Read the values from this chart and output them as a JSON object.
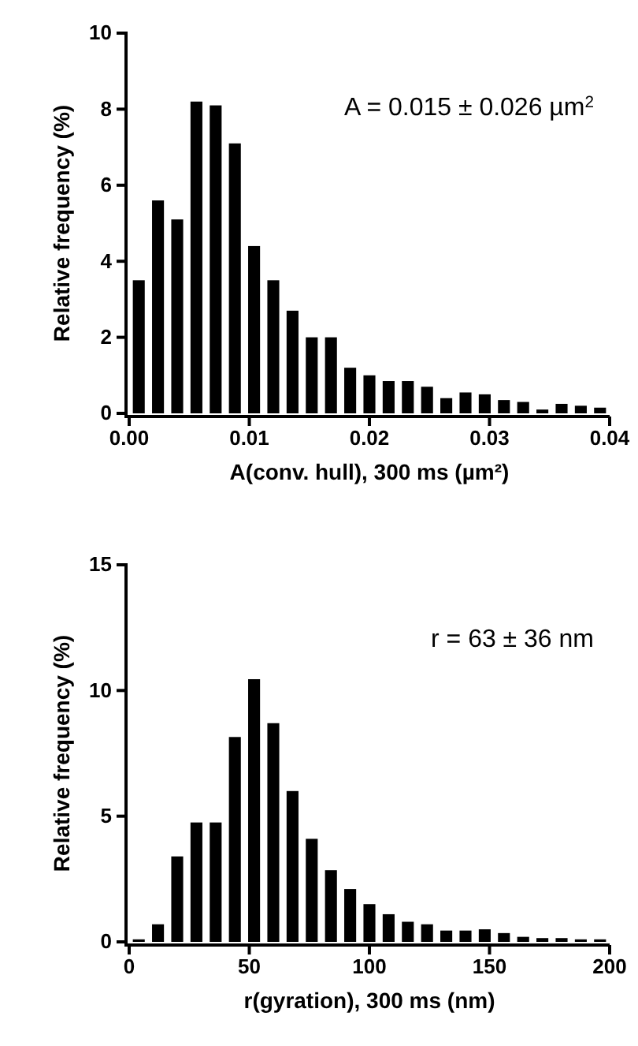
{
  "chart_data": [
    {
      "type": "histogram",
      "xlabel": "A(conv. hull), 300 ms (µm²)",
      "ylabel": "Relative frequency (%)",
      "annotations": [
        "A = 0.015 ± 0.026 µm$^{2}$"
      ],
      "color": "#000000",
      "bins": [
        0,
        0.0016,
        0.0032,
        0.0048,
        0.0064,
        0.008,
        0.0096,
        0.0112,
        0.0128,
        0.0144,
        0.016,
        0.0176,
        0.0192,
        0.0208,
        0.0224,
        0.024,
        0.0256,
        0.0272,
        0.0288,
        0.0304,
        0.032,
        0.0336,
        0.0352,
        0.0368,
        0.0384,
        0.04
      ],
      "values": [
        3.5,
        5.6,
        5.1,
        8.2,
        8.1,
        7.1,
        4.4,
        3.5,
        2.7,
        2.0,
        2.0,
        1.2,
        1.0,
        0.85,
        0.85,
        0.7,
        0.4,
        0.55,
        0.5,
        0.35,
        0.3,
        0.1,
        0.25,
        0.2,
        0.15
      ],
      "xlim": [
        0,
        0.04
      ],
      "xticks": [
        {
          "value": 0,
          "label": "0.00"
        },
        {
          "value": 0.01,
          "label": "0.01"
        },
        {
          "value": 0.02,
          "label": "0.02"
        },
        {
          "value": 0.03,
          "label": "0.03"
        },
        {
          "value": 0.04,
          "label": "0.04"
        }
      ],
      "ylim": [
        0,
        10
      ],
      "yticks": [
        0,
        2,
        4,
        6,
        8,
        10
      ],
      "grid": false
    },
    {
      "type": "histogram",
      "xlabel": "r(gyration), 300 ms (nm)",
      "ylabel": "Relative frequency (%)",
      "annotations": [
        "r = 63 ± 36 nm"
      ],
      "color": "#000000",
      "bins": [
        0,
        8,
        16,
        24,
        32,
        40,
        48,
        56,
        64,
        72,
        80,
        88,
        96,
        104,
        112,
        120,
        128,
        136,
        144,
        152,
        160,
        168,
        176,
        184,
        192,
        200
      ],
      "values": [
        0.1,
        0.7,
        3.4,
        4.75,
        4.75,
        8.15,
        10.45,
        8.7,
        6.0,
        4.1,
        2.85,
        2.1,
        1.5,
        1.1,
        0.8,
        0.7,
        0.45,
        0.45,
        0.5,
        0.35,
        0.2,
        0.15,
        0.15,
        0.1,
        0.1
      ],
      "xlim": [
        0,
        200
      ],
      "xticks": [
        0,
        50,
        100,
        150,
        200
      ],
      "ylim": [
        0,
        15
      ],
      "yticks": [
        0,
        5,
        10,
        15
      ],
      "grid": false
    }
  ]
}
